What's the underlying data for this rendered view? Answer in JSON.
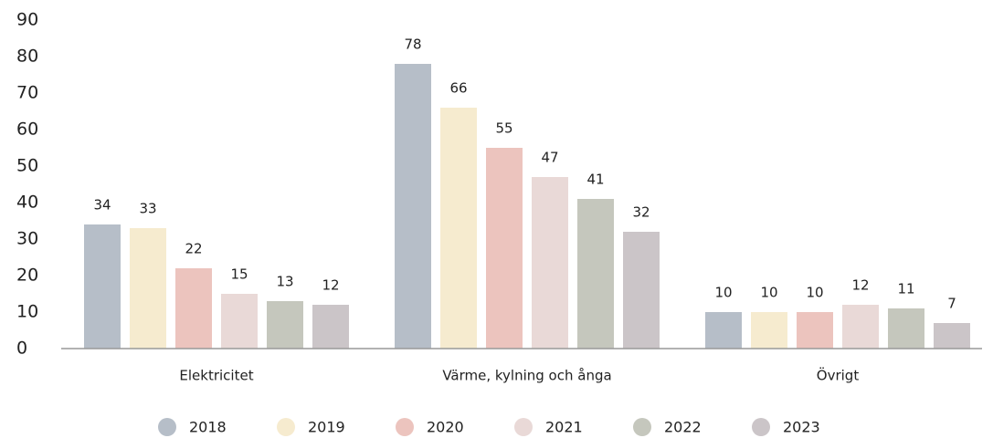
{
  "chart_data": {
    "type": "bar",
    "categories": [
      "Elektricitet",
      "Värme, kylning och ånga",
      "Övrigt"
    ],
    "series": [
      {
        "name": "2018",
        "color": "#b6bec8",
        "values": [
          34,
          78,
          10
        ]
      },
      {
        "name": "2019",
        "color": "#f6ebcf",
        "values": [
          33,
          66,
          10
        ]
      },
      {
        "name": "2020",
        "color": "#ecc4be",
        "values": [
          22,
          55,
          10
        ]
      },
      {
        "name": "2021",
        "color": "#e9d9d7",
        "values": [
          15,
          47,
          12
        ]
      },
      {
        "name": "2022",
        "color": "#c5c7bd",
        "values": [
          13,
          41,
          11
        ]
      },
      {
        "name": "2023",
        "color": "#cbc5c8",
        "values": [
          12,
          32,
          7
        ]
      }
    ],
    "ylim": [
      0,
      90
    ],
    "yticks": [
      0,
      10,
      20,
      30,
      40,
      50,
      60,
      70,
      80,
      90
    ],
    "grid": false,
    "legend": "bottom"
  }
}
